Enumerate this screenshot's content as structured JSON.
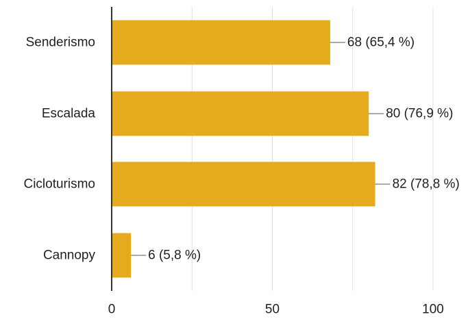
{
  "chart_data": {
    "type": "bar",
    "orientation": "horizontal",
    "categories": [
      "Senderismo",
      "Escalada",
      "Cicloturismo",
      "Cannopy"
    ],
    "values": [
      68,
      80,
      82,
      6
    ],
    "data_labels": [
      "68 (65,4 %)",
      "80 (76,9 %)",
      "82 (78,8 %)",
      "6 (5,8 %)"
    ],
    "xlim": [
      0,
      100
    ],
    "x_ticks": [
      0,
      50,
      100
    ],
    "x_tick_labels": [
      "0",
      "50",
      "100"
    ],
    "grid": true,
    "bar_color": "#e6aa1e",
    "title": "",
    "xlabel": "",
    "ylabel": ""
  }
}
